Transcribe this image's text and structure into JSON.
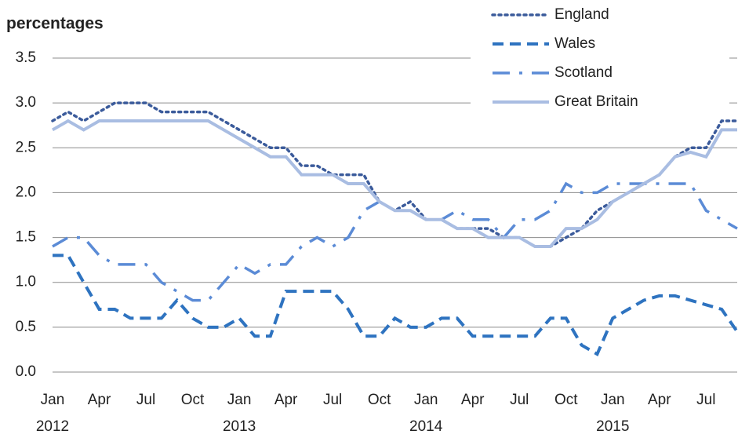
{
  "chart_data": {
    "type": "line",
    "title": "percentages",
    "categories": [
      "Jan",
      null,
      null,
      "Apr",
      null,
      null,
      "Jul",
      null,
      null,
      "Oct",
      null,
      null,
      "Jan",
      null,
      null,
      "Apr",
      null,
      null,
      "Jul",
      null,
      null,
      "Oct",
      null,
      null,
      "Jan",
      null,
      null,
      "Apr",
      null,
      null,
      "Jul",
      null,
      null,
      "Oct",
      null,
      null,
      "Jan",
      null,
      null,
      "Apr",
      null,
      null,
      "Jul",
      null,
      null
    ],
    "years": [
      "2012",
      null,
      null,
      null,
      null,
      null,
      null,
      null,
      null,
      null,
      null,
      null,
      "2013",
      null,
      null,
      null,
      null,
      null,
      null,
      null,
      null,
      null,
      null,
      null,
      "2014",
      null,
      null,
      null,
      null,
      null,
      null,
      null,
      null,
      null,
      null,
      null,
      "2015",
      null,
      null,
      null,
      null,
      null,
      null,
      null,
      null
    ],
    "ylim": [
      0,
      3.5
    ],
    "yticks": [
      {
        "value": 0,
        "label": "0.0"
      },
      {
        "value": 0.5,
        "label": "0.5"
      },
      {
        "value": 1,
        "label": "1.0"
      },
      {
        "value": 1.5,
        "label": "1.5"
      },
      {
        "value": 2,
        "label": "2.0"
      },
      {
        "value": 2.5,
        "label": "2.5"
      },
      {
        "value": 3,
        "label": "3.0"
      },
      {
        "value": 3.5,
        "label": "3.5"
      }
    ],
    "grid": true,
    "legend": "top-right",
    "series": [
      {
        "name": "England",
        "color": "#3b5b9b",
        "style": "dotted",
        "values": [
          2.8,
          2.9,
          2.8,
          2.9,
          3.0,
          3.0,
          3.0,
          2.9,
          2.9,
          2.9,
          2.9,
          2.8,
          2.7,
          2.6,
          2.5,
          2.5,
          2.3,
          2.3,
          2.2,
          2.2,
          2.2,
          1.9,
          1.8,
          1.9,
          1.7,
          1.7,
          1.6,
          1.6,
          1.6,
          1.5,
          1.5,
          1.4,
          1.4,
          1.5,
          1.6,
          1.8,
          1.9,
          2.0,
          2.1,
          2.2,
          2.4,
          2.5,
          2.5,
          2.8,
          2.8
        ]
      },
      {
        "name": "Wales",
        "color": "#2e73c0",
        "style": "dashed",
        "values": [
          1.3,
          1.3,
          1.0,
          0.7,
          0.7,
          0.6,
          0.6,
          0.6,
          0.8,
          0.6,
          0.5,
          0.5,
          0.6,
          0.4,
          0.4,
          0.9,
          0.9,
          0.9,
          0.9,
          0.7,
          0.4,
          0.4,
          0.6,
          0.5,
          0.5,
          0.6,
          0.6,
          0.4,
          0.4,
          0.4,
          0.4,
          0.4,
          0.6,
          0.6,
          0.3,
          0.2,
          0.6,
          0.7,
          0.8,
          0.85,
          0.85,
          0.8,
          0.75,
          0.7,
          0.45
        ]
      },
      {
        "name": "Scotland",
        "color": "#5b8bd6",
        "style": "dashdot",
        "values": [
          1.4,
          1.5,
          1.5,
          1.3,
          1.2,
          1.2,
          1.2,
          1.0,
          0.9,
          0.8,
          0.8,
          1.0,
          1.2,
          1.1,
          1.2,
          1.2,
          1.4,
          1.5,
          1.4,
          1.5,
          1.8,
          1.9,
          1.8,
          1.8,
          1.7,
          1.7,
          1.8,
          1.7,
          1.7,
          1.5,
          1.7,
          1.7,
          1.8,
          2.1,
          2.0,
          2.0,
          2.1,
          2.1,
          2.1,
          2.1,
          2.1,
          2.1,
          1.8,
          1.7,
          1.6
        ]
      },
      {
        "name": "Great Britain",
        "color": "#a9bde2",
        "style": "solid",
        "values": [
          2.7,
          2.8,
          2.7,
          2.8,
          2.8,
          2.8,
          2.8,
          2.8,
          2.8,
          2.8,
          2.8,
          2.7,
          2.6,
          2.5,
          2.4,
          2.4,
          2.2,
          2.2,
          2.2,
          2.1,
          2.1,
          1.9,
          1.8,
          1.8,
          1.7,
          1.7,
          1.6,
          1.6,
          1.5,
          1.5,
          1.5,
          1.4,
          1.4,
          1.6,
          1.6,
          1.7,
          1.9,
          2.0,
          2.1,
          2.2,
          2.4,
          2.45,
          2.4,
          2.7,
          2.7
        ]
      }
    ]
  }
}
